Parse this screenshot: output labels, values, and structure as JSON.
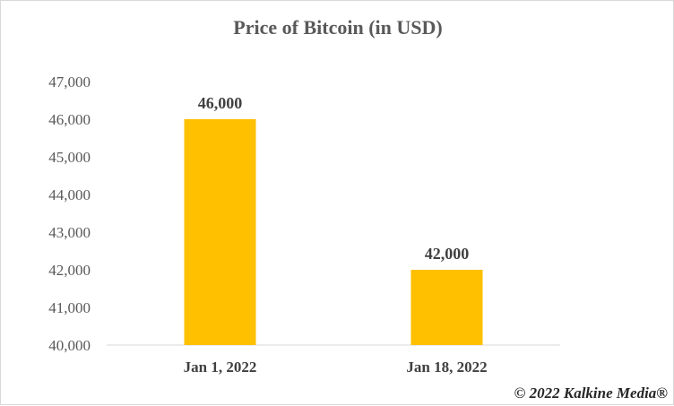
{
  "chart_data": {
    "type": "bar",
    "title": "Price of Bitcoin (in USD)",
    "xlabel": "",
    "ylabel": "",
    "categories": [
      "Jan 1, 2022",
      "Jan 18, 2022"
    ],
    "values": [
      46000,
      42000
    ],
    "data_labels": [
      "46,000",
      "42,000"
    ],
    "ylim": [
      40000,
      47000
    ],
    "yticks": [
      40000,
      41000,
      42000,
      43000,
      44000,
      45000,
      46000,
      47000
    ],
    "ytick_labels": [
      "40,000",
      "41,000",
      "42,000",
      "43,000",
      "44,000",
      "45,000",
      "46,000",
      "47,000"
    ],
    "grid": false,
    "bar_color": "#FFC000"
  },
  "credit": "© 2022 Kalkine Media®"
}
